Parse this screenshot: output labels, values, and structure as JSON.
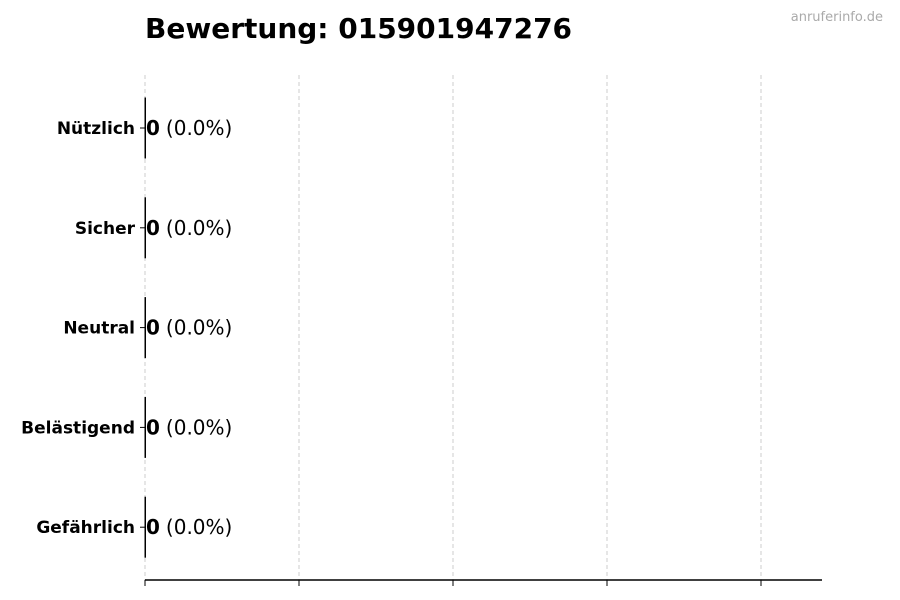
{
  "chart_data": {
    "type": "bar",
    "orientation": "horizontal",
    "title": "Bewertung: 015901947276",
    "categories": [
      "Nützlich",
      "Sicher",
      "Neutral",
      "Belästigend",
      "Gefährlich"
    ],
    "values": [
      0,
      0,
      0,
      0,
      0
    ],
    "data_labels": [
      {
        "count": "0",
        "percent": "(0.0%)"
      },
      {
        "count": "0",
        "percent": "(0.0%)"
      },
      {
        "count": "0",
        "percent": "(0.0%)"
      },
      {
        "count": "0",
        "percent": "(0.0%)"
      },
      {
        "count": "0",
        "percent": "(0.0%)"
      }
    ],
    "xlabel": "",
    "ylabel": "",
    "grid": "vertical dashed",
    "x_tick_labels_shown": false,
    "colors": {
      "grid": "#cccccc",
      "axis": "#000000",
      "bar_edge": "#000000"
    }
  },
  "watermark": "anruferinfo.de"
}
